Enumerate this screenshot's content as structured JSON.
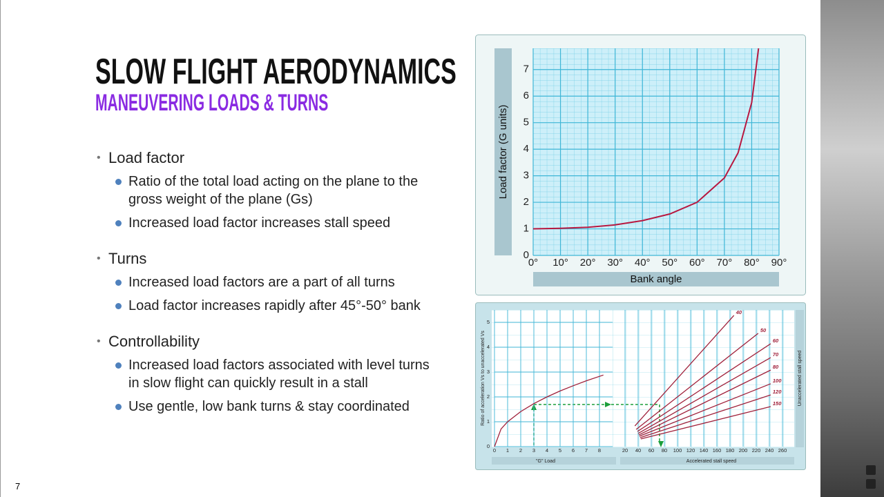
{
  "slide": {
    "title": "SLOW FLIGHT AERODYNAMICS",
    "subtitle": "MANEUVERING LOADS & TURNS",
    "bullets": [
      {
        "text": "Load factor",
        "sub": [
          "Ratio of the total load acting on the plane to the gross weight of the plane (Gs)",
          "Increased load factor increases stall speed"
        ]
      },
      {
        "text": "Turns",
        "sub": [
          "Increased load factors are a part of all turns",
          "Load factor increases rapidly after 45°-50° bank"
        ]
      },
      {
        "text": "Controllability",
        "sub": [
          "Increased load factors associated with level turns in slow flight can quickly result in a stall",
          "Use gentle, low bank turns & stay coordinated"
        ]
      }
    ],
    "page_number": "7"
  },
  "chart_data": [
    {
      "type": "line",
      "xlabel": "Bank angle",
      "ylabel": "Load factor (G units)",
      "x": [
        0,
        10,
        20,
        30,
        40,
        50,
        60,
        70,
        75,
        80,
        82.5
      ],
      "values": [
        1,
        1.02,
        1.06,
        1.15,
        1.31,
        1.56,
        2,
        2.92,
        3.86,
        5.76,
        7.8
      ],
      "color": "#b8173f",
      "xlim": [
        0,
        90
      ],
      "ylim": [
        0,
        7.8
      ],
      "xticks": [
        {
          "value": 0,
          "label": "0°"
        },
        {
          "value": 10,
          "label": "10°"
        },
        {
          "value": 20,
          "label": "20°"
        },
        {
          "value": 30,
          "label": "30°"
        },
        {
          "value": 40,
          "label": "40°"
        },
        {
          "value": 50,
          "label": "50°"
        },
        {
          "value": 60,
          "label": "60°"
        },
        {
          "value": 70,
          "label": "70°"
        },
        {
          "value": 80,
          "label": "80°"
        },
        {
          "value": 90,
          "label": "90°"
        }
      ],
      "yticks": [
        0,
        1,
        2,
        3,
        4,
        5,
        6,
        7
      ],
      "grid": true
    },
    {
      "type": "line",
      "xlabel": "\"G\" Load",
      "ylabel": "Ratio of acceleration Vs to unaccelerated Vs",
      "x": [
        0,
        0.5,
        1,
        2,
        3,
        4,
        5,
        6,
        7,
        8.3
      ],
      "values": [
        0,
        0.71,
        1,
        1.41,
        1.73,
        2,
        2.24,
        2.45,
        2.65,
        2.88
      ],
      "color": "#a0203a",
      "xlim": [
        0,
        9
      ],
      "ylim": [
        0,
        5.5
      ],
      "xticks": [
        0,
        1,
        2,
        3,
        4,
        5,
        6,
        7,
        8
      ],
      "yticks": [
        0,
        1,
        2,
        3,
        4,
        5
      ],
      "grid": true
    },
    {
      "type": "line",
      "xlabel": "Accelerated stall speed",
      "legend_title": "Unaccelerated stall speed",
      "xlim": [
        20,
        270
      ],
      "ylim": [
        0,
        5.5
      ],
      "xticks": [
        20,
        40,
        60,
        80,
        100,
        120,
        140,
        160,
        180,
        200,
        220,
        240,
        260
      ],
      "grid": true,
      "series": [
        {
          "name": "40",
          "color": "#a0203a",
          "x": [
            35,
            186
          ],
          "values": [
            0.83,
            5.28
          ]
        },
        {
          "name": "50",
          "color": "#a0203a",
          "x": [
            37,
            223
          ],
          "values": [
            0.69,
            4.56
          ]
        },
        {
          "name": "60",
          "color": "#a0203a",
          "x": [
            39,
            242
          ],
          "values": [
            0.61,
            4.14
          ]
        },
        {
          "name": "70",
          "color": "#a0203a",
          "x": [
            40,
            242
          ],
          "values": [
            0.53,
            3.58
          ]
        },
        {
          "name": "80",
          "color": "#a0203a",
          "x": [
            41,
            242
          ],
          "values": [
            0.47,
            3.08
          ]
        },
        {
          "name": "100",
          "color": "#a0203a",
          "x": [
            42,
            242
          ],
          "values": [
            0.42,
            2.53
          ]
        },
        {
          "name": "120",
          "color": "#a0203a",
          "x": [
            43,
            242
          ],
          "values": [
            0.36,
            2.08
          ]
        },
        {
          "name": "150",
          "color": "#a0203a",
          "x": [
            44,
            242
          ],
          "values": [
            0.31,
            1.61
          ]
        }
      ]
    }
  ]
}
